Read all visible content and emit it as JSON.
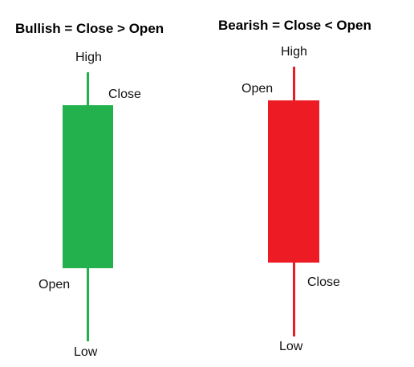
{
  "bullish": {
    "title": "Bullish = Close > Open",
    "high_label": "High",
    "close_label": "Close",
    "open_label": "Open",
    "low_label": "Low",
    "color": "#22b14c"
  },
  "bearish": {
    "title": "Bearish = Close < Open",
    "high_label": "High",
    "open_label": "Open",
    "close_label": "Close",
    "low_label": "Low",
    "color": "#ed1c24"
  }
}
